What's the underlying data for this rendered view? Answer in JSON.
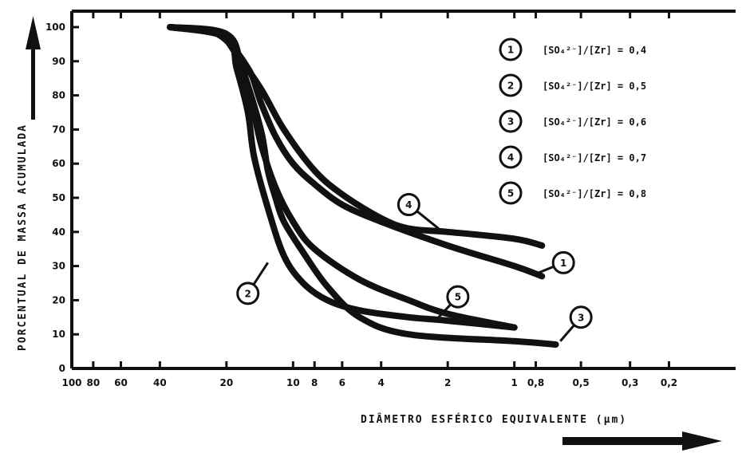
{
  "chart_data": {
    "type": "line",
    "xlabel": "DIÂMETRO ESFÉRICO EQUIVALENTE (µm)",
    "ylabel": "PORCENTUAL DE MASSA ACUMULADA",
    "x_scale": "log",
    "x_reversed": true,
    "xlim": [
      100,
      0.1
    ],
    "ylim": [
      0,
      100
    ],
    "x_ticks": [
      100,
      80,
      60,
      40,
      20,
      10,
      8,
      6,
      4,
      2,
      1,
      0.8,
      0.5,
      0.3,
      0.2
    ],
    "x_tick_labels": [
      "100",
      "80",
      "60",
      "40",
      "20",
      "10",
      "8",
      "6",
      "4",
      "2",
      "1",
      "0,8",
      "0,5",
      "0,3",
      "0,2"
    ],
    "y_ticks": [
      0,
      10,
      20,
      30,
      40,
      50,
      60,
      70,
      80,
      90,
      100
    ],
    "y_tick_labels": [
      "0",
      "10",
      "20",
      "30",
      "40",
      "50",
      "60",
      "70",
      "80",
      "90",
      "100"
    ],
    "grid": false,
    "legend_position": "top-right",
    "legend": [
      {
        "marker": "1",
        "label": "[SO₄²⁻]/[Zr] = 0,4"
      },
      {
        "marker": "2",
        "label": "[SO₄²⁻]/[Zr] = 0,5"
      },
      {
        "marker": "3",
        "label": "[SO₄²⁻]/[Zr] = 0,6"
      },
      {
        "marker": "4",
        "label": "[SO₄²⁻]/[Zr] = 0,7"
      },
      {
        "marker": "5",
        "label": "[SO₄²⁻]/[Zr] = 0,8"
      }
    ],
    "series": [
      {
        "marker": "1",
        "x": [
          36,
          22,
          16,
          14,
          12,
          10,
          8,
          6,
          4,
          2,
          1,
          0.75
        ],
        "y": [
          100,
          98,
          88,
          78,
          68,
          60,
          54,
          48,
          43,
          36,
          30,
          27
        ]
      },
      {
        "marker": "2",
        "x": [
          36,
          20,
          18,
          16,
          15,
          13,
          11,
          9,
          7,
          5,
          3,
          2,
          1
        ],
        "y": [
          100,
          97,
          88,
          75,
          62,
          47,
          33,
          25,
          20,
          17,
          15,
          14,
          12
        ]
      },
      {
        "marker": "3",
        "x": [
          36,
          20,
          17,
          14,
          13,
          12,
          11,
          9,
          7,
          5,
          3,
          1,
          0.65
        ],
        "y": [
          100,
          98,
          88,
          70,
          58,
          50,
          43,
          34,
          24,
          15,
          10,
          8,
          7
        ]
      },
      {
        "marker": "4",
        "x": [
          36,
          22,
          18,
          14,
          11,
          8,
          6,
          4,
          3,
          2,
          1,
          0.75
        ],
        "y": [
          100,
          98,
          92,
          82,
          70,
          58,
          51,
          44,
          41,
          40,
          38,
          36
        ]
      },
      {
        "marker": "5",
        "x": [
          36,
          20,
          16,
          14,
          12,
          10,
          8,
          5,
          3,
          2,
          1
        ],
        "y": [
          100,
          97,
          82,
          66,
          53,
          43,
          35,
          26,
          20,
          16,
          12
        ]
      }
    ],
    "curve_labels": [
      {
        "marker": "4",
        "x": 3,
        "y": 48
      },
      {
        "marker": "1",
        "x": 0.6,
        "y": 31
      },
      {
        "marker": "5",
        "x": 1.8,
        "y": 21
      },
      {
        "marker": "2",
        "x": 16,
        "y": 22
      },
      {
        "marker": "3",
        "x": 0.5,
        "y": 15
      }
    ]
  }
}
